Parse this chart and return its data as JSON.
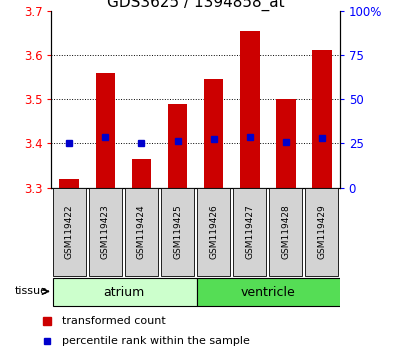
{
  "title": "GDS3625 / 1394858_at",
  "samples": [
    "GSM119422",
    "GSM119423",
    "GSM119424",
    "GSM119425",
    "GSM119426",
    "GSM119427",
    "GSM119428",
    "GSM119429"
  ],
  "bar_tops": [
    3.32,
    3.56,
    3.365,
    3.49,
    3.545,
    3.655,
    3.5,
    3.61
  ],
  "bar_base": 3.3,
  "percentile_values": [
    3.4,
    3.415,
    3.4,
    3.405,
    3.41,
    3.415,
    3.403,
    3.413
  ],
  "ylim_left": [
    3.3,
    3.7
  ],
  "ylim_right": [
    0,
    100
  ],
  "yticks_left": [
    3.3,
    3.4,
    3.5,
    3.6,
    3.7
  ],
  "yticks_right": [
    0,
    25,
    50,
    75,
    100
  ],
  "grid_yticks": [
    3.4,
    3.5,
    3.6
  ],
  "bar_color": "#cc0000",
  "percentile_color": "#0000cc",
  "atrium_color": "#ccffcc",
  "ventricle_color": "#55dd55",
  "sample_box_color": "#d3d3d3",
  "legend_bar": "transformed count",
  "legend_percentile": "percentile rank within the sample",
  "title_fontsize": 11,
  "tick_fontsize": 8.5,
  "sample_fontsize": 6.5,
  "tissue_fontsize": 9,
  "legend_fontsize": 8
}
